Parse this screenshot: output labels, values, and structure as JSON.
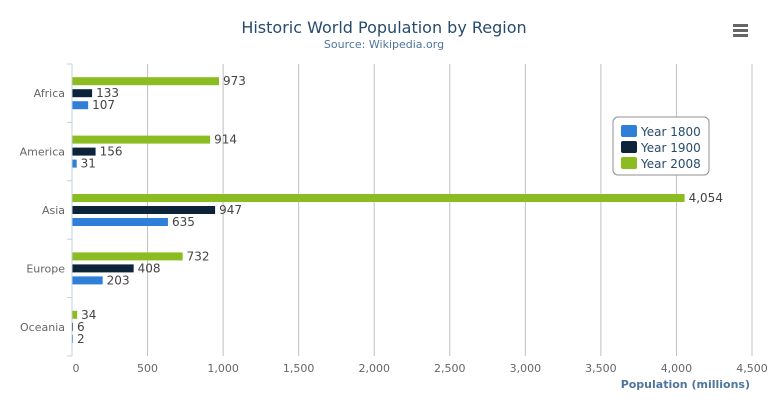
{
  "chart_data": {
    "type": "bar",
    "orientation": "horizontal",
    "title": "Historic World Population by Region",
    "subtitle": "Source: Wikipedia.org",
    "xlabel": "",
    "ylabel": "Population (millions)",
    "categories": [
      "Africa",
      "America",
      "Asia",
      "Europe",
      "Oceania"
    ],
    "series": [
      {
        "name": "Year 1800",
        "color": "#2f7ed8",
        "values": [
          107,
          31,
          635,
          203,
          2
        ]
      },
      {
        "name": "Year 1900",
        "color": "#0d233a",
        "values": [
          133,
          156,
          947,
          408,
          6
        ]
      },
      {
        "name": "Year 2008",
        "color": "#8bbc21",
        "values": [
          973,
          914,
          4054,
          732,
          34
        ]
      }
    ],
    "ylim": [
      0,
      4500
    ],
    "ticks": [
      "0",
      "500",
      "1,000",
      "1,500",
      "2,000",
      "2,500",
      "3,000",
      "3,500",
      "4,000",
      "4,500"
    ],
    "data_labels": true,
    "grid": true,
    "legend": "right",
    "menu_icon": "hamburger-menu-icon"
  }
}
